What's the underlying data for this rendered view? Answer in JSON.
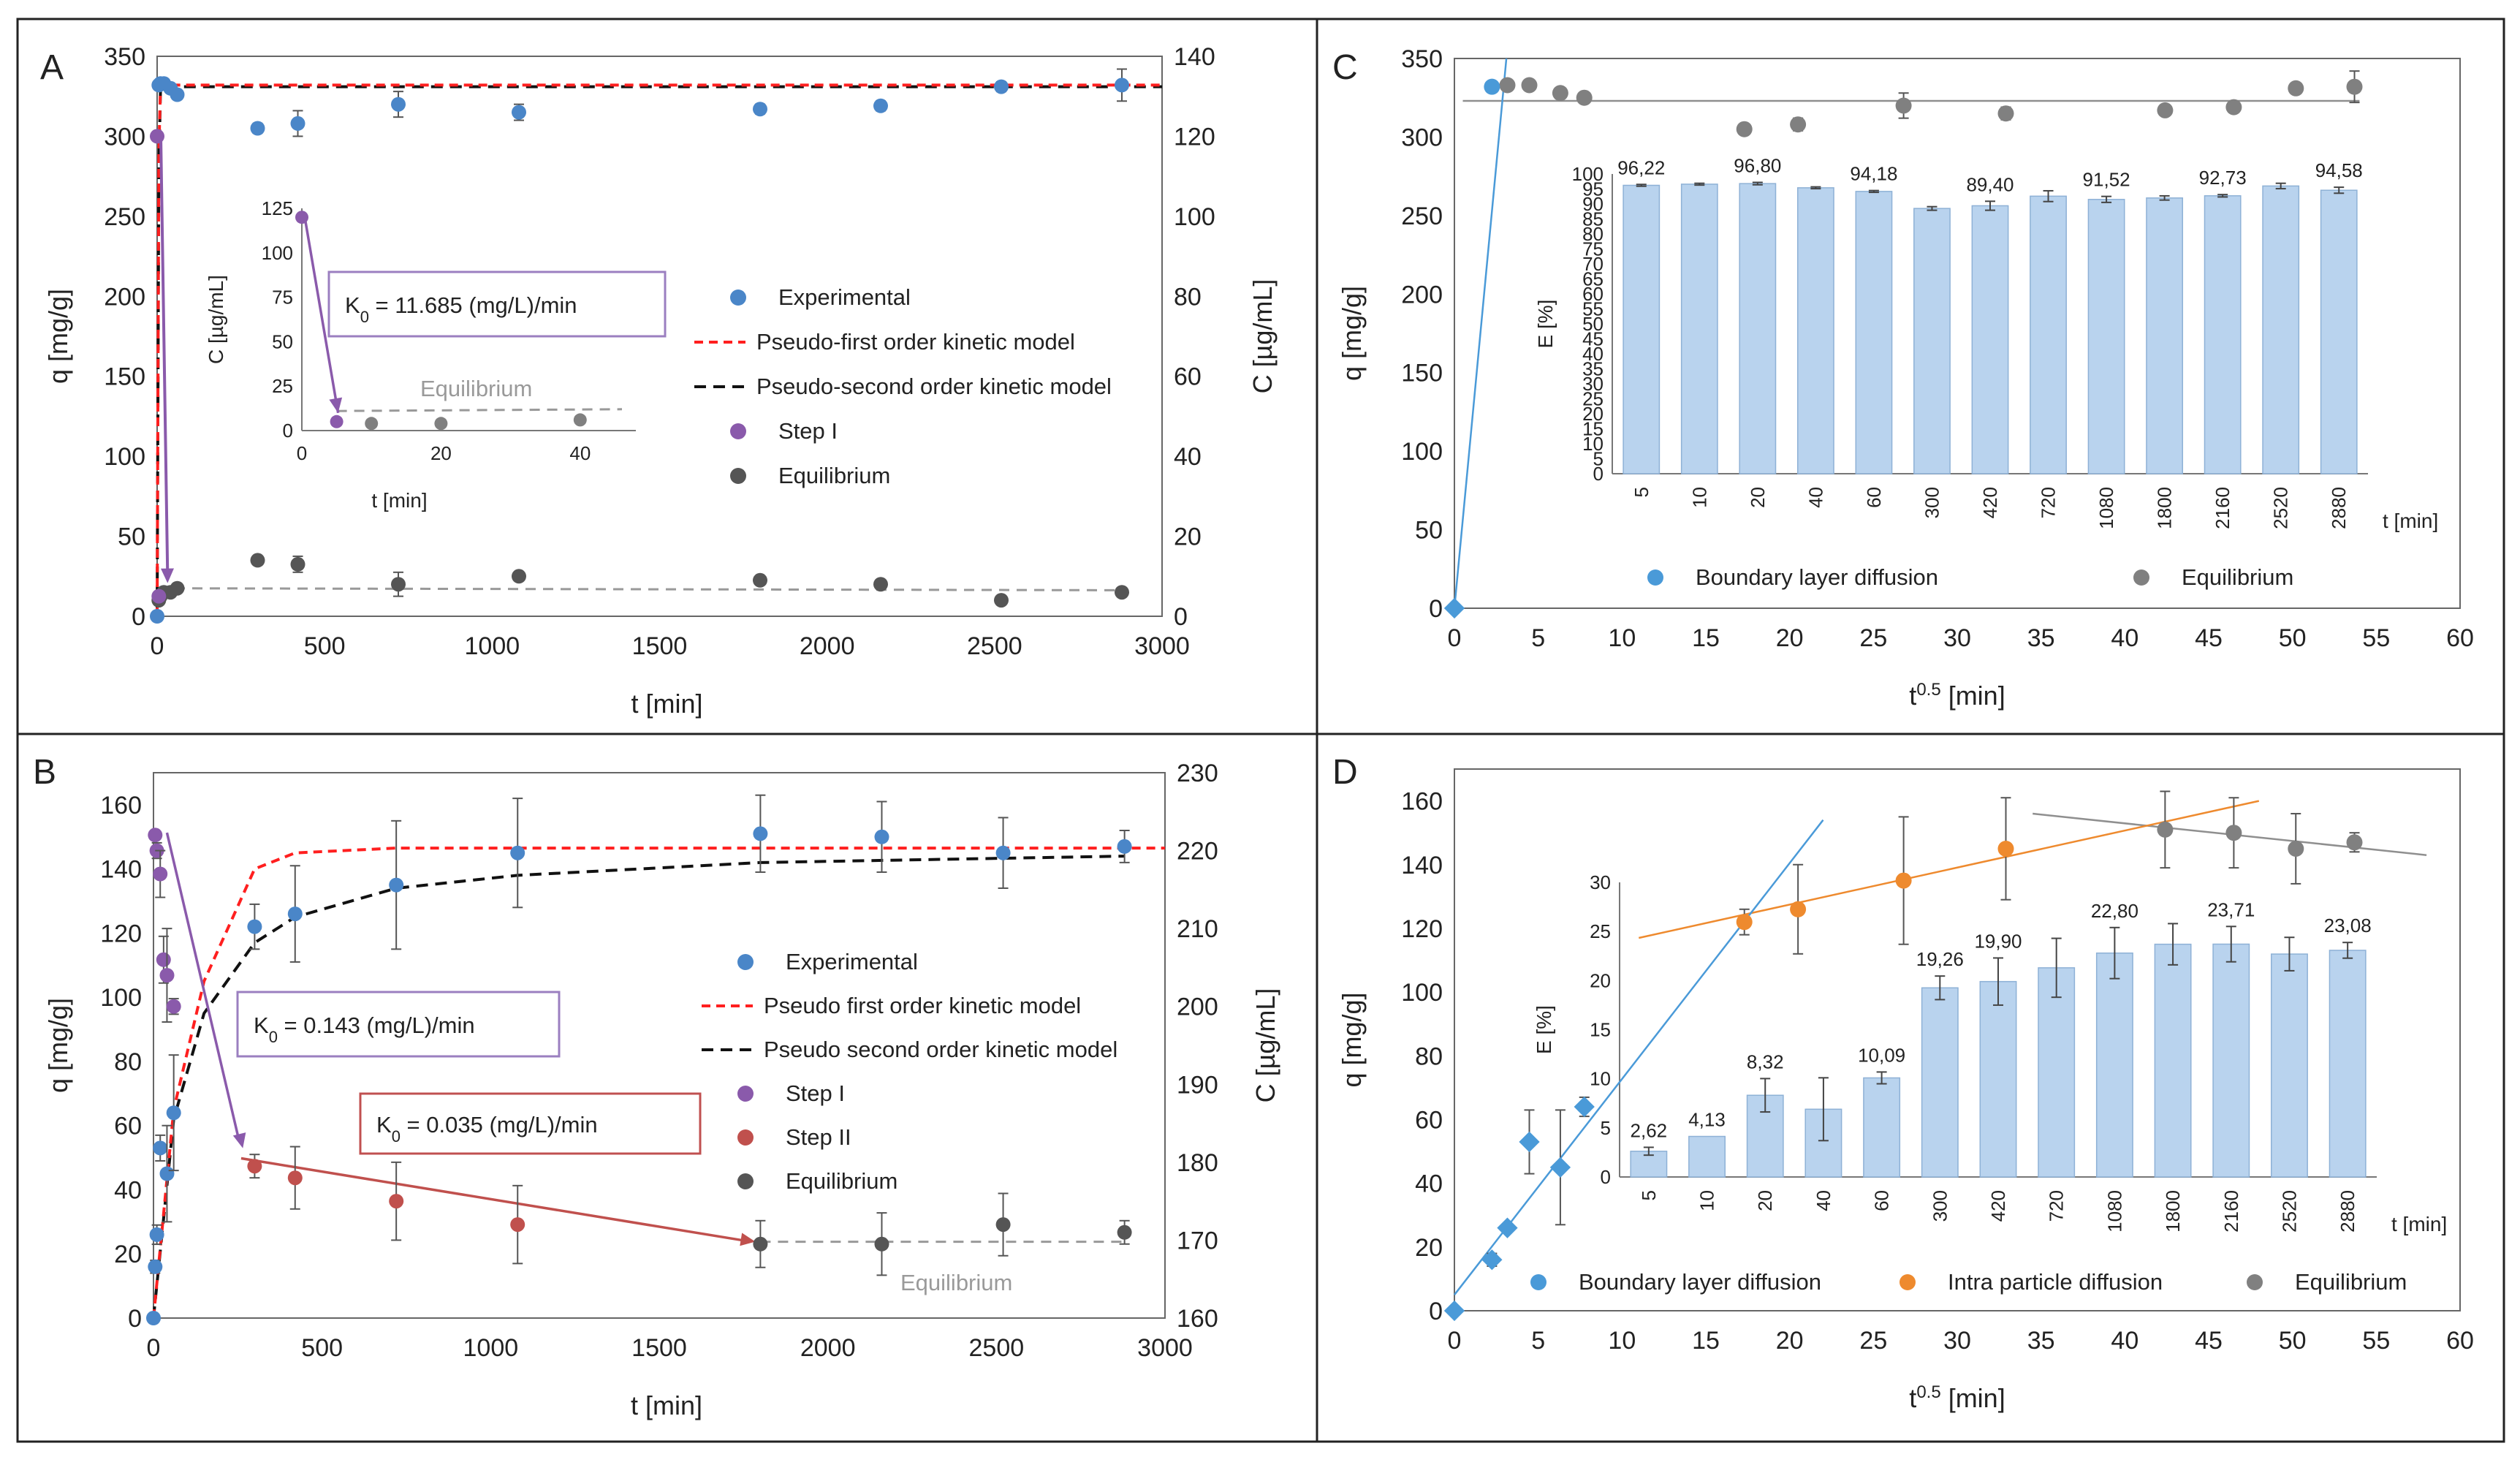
{
  "chart_data": [
    {
      "panel": "A",
      "type": "scatter",
      "letter": "A",
      "xlabel": "t [min]",
      "ylabel": "q [mg/g]",
      "y2label": "C [µg/mL]",
      "xlim": [
        0,
        3000
      ],
      "ylim": [
        0,
        350
      ],
      "y2lim": [
        0,
        140
      ],
      "xticks": [
        0,
        500,
        1000,
        1500,
        2000,
        2500,
        3000
      ],
      "yticks": [
        0,
        50,
        100,
        150,
        200,
        250,
        300,
        350
      ],
      "y2ticks": [
        0,
        20,
        40,
        60,
        80,
        100,
        120,
        140
      ],
      "experimental": {
        "x": [
          0,
          5,
          10,
          20,
          40,
          60,
          300,
          420,
          720,
          1080,
          1800,
          2160,
          2520,
          2880
        ],
        "y": [
          0,
          332,
          333,
          333,
          330,
          326,
          305,
          308,
          320,
          315,
          317,
          319,
          331,
          332
        ],
        "err": [
          0,
          0,
          0,
          0,
          0,
          0,
          3,
          8,
          8,
          5,
          3,
          3,
          3,
          10
        ]
      },
      "pfo_model": {
        "x": [
          0,
          5,
          10,
          20,
          3000
        ],
        "y": [
          0,
          290,
          331,
          332,
          332
        ]
      },
      "pso_model": {
        "x": [
          0,
          5,
          10,
          20,
          3000
        ],
        "y": [
          0,
          280,
          329,
          331,
          331
        ]
      },
      "step1": {
        "x": [
          0,
          5
        ],
        "y2": [
          120,
          5
        ]
      },
      "equilibrium": {
        "x": [
          5,
          10,
          20,
          40,
          60,
          300,
          420,
          720,
          1080,
          1800,
          2160,
          2520,
          2880
        ],
        "y2": [
          4,
          5,
          6,
          6,
          7,
          14,
          13,
          8,
          10,
          9,
          8,
          4,
          6
        ],
        "err2": [
          0,
          0,
          0,
          0,
          0,
          1,
          2,
          3,
          1,
          1,
          1,
          1,
          1
        ]
      },
      "eq_line": {
        "x": [
          0,
          2880
        ],
        "y2": [
          7,
          6.5
        ]
      },
      "legend": [
        "Experimental",
        "Pseudo-first order kinetic model",
        "Pseudo-second order kinetic model",
        "Step I",
        "Equilibrium"
      ],
      "inset": {
        "xlabel": "t [min]",
        "ylabel": "C [µg/mL]",
        "xlim": [
          0,
          48
        ],
        "ylim": [
          0,
          125
        ],
        "xticks": [
          0,
          20,
          40
        ],
        "yticks": [
          0,
          25,
          50,
          75,
          100,
          125
        ],
        "step1": {
          "x": [
            0,
            5
          ],
          "y": [
            120,
            5
          ]
        },
        "equilibrium": {
          "x": [
            10,
            20,
            40
          ],
          "y": [
            4,
            4,
            6
          ]
        },
        "eq_line": {
          "x": [
            5,
            46
          ],
          "y": [
            11,
            12
          ]
        },
        "eq_label": "Equilibrium",
        "k_sub": "0",
        "k_text": " = 11.685 (mg/L)/min"
      }
    },
    {
      "panel": "B",
      "type": "scatter",
      "letter": "B",
      "xlabel": "t [min]",
      "ylabel": "q [mg/g]",
      "y2label": "C [µg/mL]",
      "xlim": [
        0,
        3000
      ],
      "ylim": [
        0,
        170
      ],
      "y2lim": [
        160,
        230
      ],
      "xticks": [
        0,
        500,
        1000,
        1500,
        2000,
        2500,
        3000
      ],
      "yticks": [
        0,
        20,
        40,
        60,
        80,
        100,
        120,
        140,
        160
      ],
      "y2ticks": [
        160,
        170,
        180,
        190,
        200,
        210,
        220,
        230
      ],
      "experimental": {
        "x": [
          0,
          5,
          10,
          20,
          40,
          60,
          300,
          420,
          720,
          1080,
          1800,
          2160,
          2520,
          2880
        ],
        "y": [
          0,
          16,
          26,
          53,
          45,
          64,
          122,
          126,
          135,
          145,
          151,
          150,
          145,
          147
        ],
        "err": [
          0,
          2,
          3,
          4,
          15,
          18,
          7,
          15,
          20,
          17,
          12,
          11,
          11,
          5
        ]
      },
      "pfo_model": {
        "x": [
          0,
          60,
          150,
          300,
          420,
          720,
          3000
        ],
        "y": [
          0,
          65,
          105,
          140,
          145,
          146.5,
          146.5
        ]
      },
      "pso_model": {
        "x": [
          0,
          60,
          150,
          300,
          420,
          720,
          1080,
          1800,
          2880
        ],
        "y": [
          0,
          62,
          95,
          117,
          125,
          134,
          138,
          142,
          144
        ]
      },
      "step1": {
        "x": [
          5,
          10,
          20,
          30,
          40,
          60
        ],
        "y2": [
          222,
          220,
          217,
          206,
          204,
          200
        ],
        "err2": [
          0,
          1,
          3,
          3,
          6,
          1
        ]
      },
      "step2": {
        "x": [
          300,
          420,
          720,
          1080
        ],
        "y2": [
          179.5,
          178,
          175,
          172
        ],
        "err2": [
          1.5,
          4,
          5,
          5
        ]
      },
      "equilibrium": {
        "x": [
          1800,
          2160,
          2520,
          2880
        ],
        "y2": [
          169.5,
          169.5,
          172,
          171
        ],
        "err2": [
          3,
          4,
          4,
          1.5
        ]
      },
      "eq_line": {
        "x": [
          1800,
          2880
        ],
        "y2": [
          169.8,
          169.8
        ]
      },
      "eq_label": "Equilibrium",
      "legend": [
        "Experimental",
        "Pseudo first order kinetic model",
        "Pseudo second order kinetic model",
        "Step I",
        "Step II",
        "Equilibrium"
      ],
      "k1_sub": "0",
      "k1_text": " = 0.143 (mg/L)/min",
      "k2_sub": "0",
      "k2_text": " = 0.035 (mg/L)/min"
    },
    {
      "panel": "C",
      "type": "scatter",
      "letter": "C",
      "xlabel_main": "t",
      "xlabel_sup": "0.5",
      "xlabel_unit": " [min]",
      "ylabel": "q [mg/g]",
      "xlim": [
        0,
        60
      ],
      "ylim": [
        0,
        350
      ],
      "xticks": [
        0,
        5,
        10,
        15,
        20,
        25,
        30,
        35,
        40,
        45,
        50,
        55,
        60
      ],
      "yticks": [
        0,
        50,
        100,
        150,
        200,
        250,
        300,
        350
      ],
      "boundary": {
        "x": [
          0,
          2.24
        ],
        "y": [
          0,
          332
        ]
      },
      "boundary_line": {
        "x": [
          0,
          3.1
        ],
        "y": [
          0,
          350
        ]
      },
      "equilibrium": {
        "x": [
          3.16,
          4.47,
          6.32,
          7.75,
          17.3,
          20.5,
          26.8,
          32.9,
          42.4,
          46.5,
          50.2,
          53.7
        ],
        "y": [
          333,
          333,
          328,
          325,
          305,
          308,
          320,
          315,
          317,
          319,
          331,
          332
        ],
        "err": [
          0,
          0,
          0,
          0,
          0,
          4,
          8,
          4,
          3,
          3,
          3,
          10
        ]
      },
      "eq_line": {
        "x": [
          0.5,
          54
        ],
        "y": [
          323,
          323
        ]
      },
      "legend": [
        "Boundary layer diffusion",
        "Equilibrium"
      ],
      "inset": {
        "type": "bar",
        "ylabel": "E [%]",
        "xlabel": "t [min]",
        "ylim": [
          0,
          100
        ],
        "yticks": [
          0,
          5,
          10,
          15,
          20,
          25,
          30,
          35,
          40,
          45,
          50,
          55,
          60,
          65,
          70,
          75,
          80,
          85,
          90,
          95,
          100
        ],
        "categories": [
          "5",
          "10",
          "20",
          "40",
          "60",
          "300",
          "420",
          "720",
          "1080",
          "1800",
          "2160",
          "2520",
          "2880"
        ],
        "values": [
          96.22,
          96.6,
          96.8,
          95.4,
          94.18,
          88.5,
          89.4,
          92.6,
          91.52,
          92.0,
          92.73,
          96.0,
          94.58
        ],
        "err": [
          0.3,
          0.3,
          0.4,
          0.3,
          0.3,
          0.6,
          1.5,
          1.8,
          1.0,
          0.7,
          0.4,
          0.9,
          1.0
        ],
        "labels": [
          "96,22",
          "",
          "96,80",
          "",
          "94,18",
          "",
          "89,40",
          "",
          "91,52",
          "",
          "92,73",
          "",
          "94,58"
        ]
      }
    },
    {
      "panel": "D",
      "type": "scatter",
      "letter": "D",
      "xlabel_main": "t",
      "xlabel_sup": "0.5",
      "xlabel_unit": " [min]",
      "ylabel": "q [mg/g]",
      "xlim": [
        0,
        60
      ],
      "ylim": [
        0,
        170
      ],
      "xticks": [
        0,
        5,
        10,
        15,
        20,
        25,
        30,
        35,
        40,
        45,
        50,
        55,
        60
      ],
      "yticks": [
        0,
        20,
        40,
        60,
        80,
        100,
        120,
        140,
        160
      ],
      "boundary": {
        "x": [
          0,
          2.24,
          3.16,
          4.47,
          6.32,
          7.75
        ],
        "y": [
          0,
          16,
          26,
          53,
          45,
          64
        ],
        "err": [
          0,
          2,
          0,
          10,
          18,
          3
        ]
      },
      "boundary_line": {
        "x": [
          0,
          22
        ],
        "y": [
          5,
          154
        ]
      },
      "intra": {
        "x": [
          17.3,
          20.5,
          26.8,
          32.9
        ],
        "y": [
          122,
          126,
          135,
          145
        ],
        "err": [
          4,
          14,
          20,
          16
        ]
      },
      "intra_line": {
        "x": [
          11,
          48
        ],
        "y": [
          117,
          160
        ]
      },
      "equilibrium": {
        "x": [
          42.4,
          46.5,
          50.2,
          53.7
        ],
        "y": [
          151,
          150,
          145,
          147
        ],
        "err": [
          12,
          11,
          11,
          3
        ]
      },
      "eq_line": {
        "x": [
          34.5,
          58
        ],
        "y": [
          156,
          143
        ]
      },
      "legend": [
        "Boundary layer diffusion",
        "Intra particle diffusion",
        "Equilibrium"
      ],
      "inset": {
        "type": "bar",
        "ylabel": "E [%]",
        "xlabel": "t [min]",
        "ylim": [
          0,
          30
        ],
        "yticks": [
          0,
          5,
          10,
          15,
          20,
          25,
          30
        ],
        "categories": [
          "5",
          "10",
          "20",
          "40",
          "60",
          "300",
          "420",
          "720",
          "1080",
          "1800",
          "2160",
          "2520",
          "2880"
        ],
        "values": [
          2.62,
          4.13,
          8.32,
          6.9,
          10.09,
          19.26,
          19.9,
          21.3,
          22.8,
          23.7,
          23.71,
          22.7,
          23.08
        ],
        "err": [
          0.4,
          0,
          1.7,
          3.2,
          0.6,
          1.2,
          2.4,
          3.0,
          2.6,
          2.1,
          1.8,
          1.7,
          0.8
        ],
        "labels": [
          "2,62",
          "4,13",
          "8,32",
          "",
          "10,09",
          "19,26",
          "19,90",
          "",
          "22,80",
          "",
          "23,71",
          "",
          "23,08"
        ]
      }
    }
  ],
  "colors": {
    "experimental": "#4a86c8",
    "pfo": "#ff1f1f",
    "pso": "#111111",
    "step1": "#8a5aab",
    "step2": "#c0504d",
    "equilibrium": "#555555",
    "equilibrium_light": "#808080",
    "eq_line": "#999999",
    "boundary": "#4a9ad8",
    "intra": "#ee8a2e",
    "bar_fill": "#b9d3ee",
    "bar_stroke": "#8eb1d6",
    "box_purple": "#9b7fc0",
    "box_red": "#c05050",
    "arrow_red": "#c0504d"
  }
}
